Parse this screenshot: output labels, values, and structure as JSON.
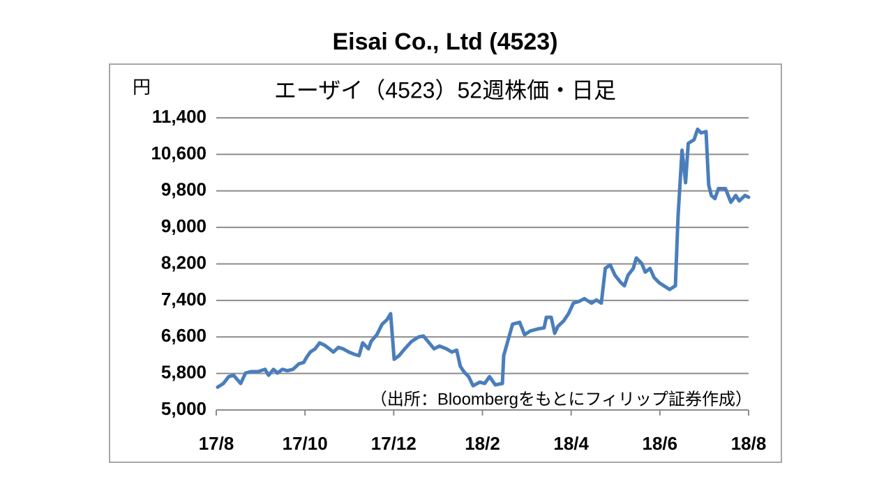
{
  "chart_data": {
    "type": "line",
    "title": "Eisai Co., Ltd (4523)",
    "subtitle": "エーザイ（4523）52週株価・日足",
    "y_label": "円",
    "note": "（出所：Bloombergをもとにフィリップ証券作成）",
    "x": [
      0.03,
      0.16,
      0.28,
      0.39,
      0.55,
      0.66,
      0.79,
      0.94,
      1.1,
      1.18,
      1.29,
      1.38,
      1.49,
      1.6,
      1.73,
      1.86,
      1.97,
      2.04,
      2.12,
      2.23,
      2.33,
      2.44,
      2.55,
      2.64,
      2.75,
      2.86,
      2.99,
      3.11,
      3.22,
      3.3,
      3.43,
      3.49,
      3.62,
      3.74,
      3.85,
      3.93,
      4.01,
      4.12,
      4.25,
      4.4,
      4.56,
      4.67,
      4.8,
      4.91,
      5.03,
      5.19,
      5.31,
      5.42,
      5.5,
      5.58,
      5.69,
      5.79,
      5.94,
      6.05,
      6.16,
      6.29,
      6.45,
      6.48,
      6.57,
      6.68,
      6.84,
      6.95,
      7.08,
      7.23,
      7.39,
      7.44,
      7.55,
      7.63,
      7.7,
      7.83,
      7.94,
      8.05,
      8.18,
      8.3,
      8.46,
      8.57,
      8.68,
      8.77,
      8.88,
      8.99,
      9.12,
      9.2,
      9.28,
      9.4,
      9.47,
      9.59,
      9.67,
      9.78,
      9.87,
      9.98,
      10.09,
      10.22,
      10.35,
      10.41,
      10.5,
      10.58,
      10.64,
      10.77,
      10.85,
      10.93,
      11.04,
      11.1,
      11.16,
      11.24,
      11.32,
      11.48,
      11.6,
      11.71,
      11.79,
      11.92,
      12.0
    ],
    "series": [
      {
        "name": "Eisai",
        "color": "#4a7ebb",
        "values": [
          5500,
          5580,
          5730,
          5760,
          5580,
          5810,
          5840,
          5840,
          5890,
          5760,
          5890,
          5810,
          5890,
          5860,
          5890,
          6010,
          6040,
          6160,
          6270,
          6340,
          6470,
          6420,
          6340,
          6270,
          6370,
          6340,
          6270,
          6220,
          6190,
          6470,
          6340,
          6500,
          6650,
          6880,
          6980,
          7110,
          6110,
          6190,
          6340,
          6500,
          6600,
          6620,
          6470,
          6340,
          6400,
          6340,
          6270,
          6310,
          5960,
          5840,
          5730,
          5530,
          5610,
          5580,
          5730,
          5550,
          5580,
          6190,
          6500,
          6880,
          6920,
          6650,
          6730,
          6770,
          6800,
          7030,
          7030,
          6680,
          6830,
          6950,
          7110,
          7340,
          7380,
          7440,
          7340,
          7410,
          7340,
          8100,
          8180,
          7950,
          7790,
          7720,
          7950,
          8100,
          8330,
          8210,
          8020,
          8100,
          7900,
          7790,
          7720,
          7640,
          7720,
          9240,
          10690,
          9980,
          10840,
          10920,
          11150,
          11070,
          11100,
          9930,
          9700,
          9630,
          9850,
          9850,
          9550,
          9700,
          9580,
          9700,
          9660
        ]
      }
    ],
    "xlim": [
      0,
      12
    ],
    "xticks": [
      {
        "value": 0,
        "label": "17/8"
      },
      {
        "value": 2,
        "label": "17/10"
      },
      {
        "value": 4,
        "label": "17/12"
      },
      {
        "value": 6,
        "label": "18/2"
      },
      {
        "value": 8,
        "label": "18/4"
      },
      {
        "value": 10,
        "label": "18/6"
      },
      {
        "value": 12,
        "label": "18/8"
      }
    ],
    "ylim": [
      5000,
      11400
    ],
    "yticks": [
      {
        "value": 5000,
        "label": "5,000"
      },
      {
        "value": 5800,
        "label": "5,800"
      },
      {
        "value": 6600,
        "label": "6,600"
      },
      {
        "value": 7400,
        "label": "7,400"
      },
      {
        "value": 8200,
        "label": "8,200"
      },
      {
        "value": 9000,
        "label": "9,000"
      },
      {
        "value": 9800,
        "label": "9,800"
      },
      {
        "value": 10600,
        "label": "10,600"
      },
      {
        "value": 11400,
        "label": "11,400"
      }
    ],
    "grid": true
  }
}
